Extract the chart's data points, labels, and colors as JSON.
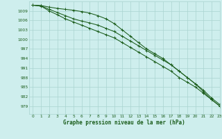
{
  "title": "Graphe pression niveau de la mer (hPa)",
  "background_color": "#ceeeed",
  "grid_color": "#aad4d0",
  "line_color": "#1a5c1a",
  "text_color": "#1a5c1a",
  "xlim": [
    -0.5,
    23
  ],
  "ylim": [
    976.5,
    1012
  ],
  "yticks": [
    979,
    982,
    985,
    988,
    991,
    994,
    997,
    1000,
    1003,
    1006,
    1009
  ],
  "xticks": [
    0,
    1,
    2,
    3,
    4,
    5,
    6,
    7,
    8,
    9,
    10,
    11,
    12,
    13,
    14,
    15,
    16,
    17,
    18,
    19,
    20,
    21,
    22,
    23
  ],
  "series1": [
    1010.8,
    1010.7,
    1010.2,
    1009.8,
    1009.5,
    1009.2,
    1008.8,
    1008.3,
    1007.5,
    1006.5,
    1005.0,
    1003.0,
    1001.0,
    999.0,
    997.0,
    995.5,
    994.0,
    992.0,
    990.0,
    988.0,
    986.0,
    983.5,
    981.0,
    979.0
  ],
  "series2": [
    1010.8,
    1010.6,
    1009.5,
    1008.5,
    1007.5,
    1006.5,
    1005.8,
    1005.2,
    1004.5,
    1003.5,
    1002.5,
    1001.0,
    999.5,
    998.0,
    996.5,
    995.0,
    993.5,
    992.0,
    990.0,
    988.0,
    986.0,
    984.0,
    981.5,
    979.5
  ],
  "series3": [
    1010.8,
    1010.5,
    1009.0,
    1007.8,
    1006.5,
    1005.5,
    1004.5,
    1003.5,
    1002.5,
    1001.5,
    1000.5,
    999.0,
    997.5,
    996.0,
    994.5,
    993.0,
    991.5,
    990.0,
    988.0,
    986.5,
    985.0,
    983.0,
    981.0,
    979.0
  ]
}
